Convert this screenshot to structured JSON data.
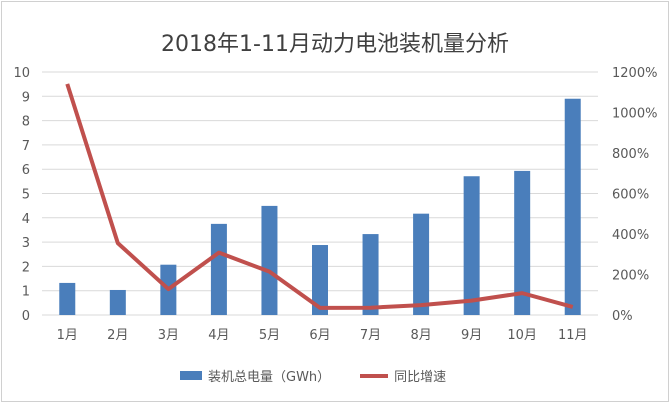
{
  "chart_data": {
    "type": "bar+line",
    "title": "2018年1-11月动力电池装机量分析",
    "categories": [
      "1月",
      "2月",
      "3月",
      "4月",
      "5月",
      "6月",
      "7月",
      "8月",
      "9月",
      "10月",
      "11月"
    ],
    "series": [
      {
        "name": "装机总电量（GWh）",
        "type": "bar",
        "axis": "left",
        "color": "#4a7ebb",
        "values": [
          1.32,
          1.03,
          2.07,
          3.75,
          4.49,
          2.88,
          3.33,
          4.17,
          5.71,
          5.93,
          8.9
        ]
      },
      {
        "name": "同比增速",
        "type": "line",
        "axis": "right",
        "color": "#c0504d",
        "values": [
          1141,
          355,
          128,
          308,
          214,
          35,
          36,
          49,
          71,
          108,
          40
        ]
      }
    ],
    "left_axis": {
      "ylim": [
        0,
        10
      ],
      "ticks": [
        "0",
        "1",
        "2",
        "3",
        "4",
        "5",
        "6",
        "7",
        "8",
        "9",
        "10"
      ]
    },
    "right_axis": {
      "ylim": [
        0,
        1200
      ],
      "unit": "%",
      "ticks": [
        "0%",
        "200%",
        "400%",
        "600%",
        "800%",
        "1000%",
        "1200%"
      ]
    },
    "grid": true,
    "legend": "bottom"
  }
}
